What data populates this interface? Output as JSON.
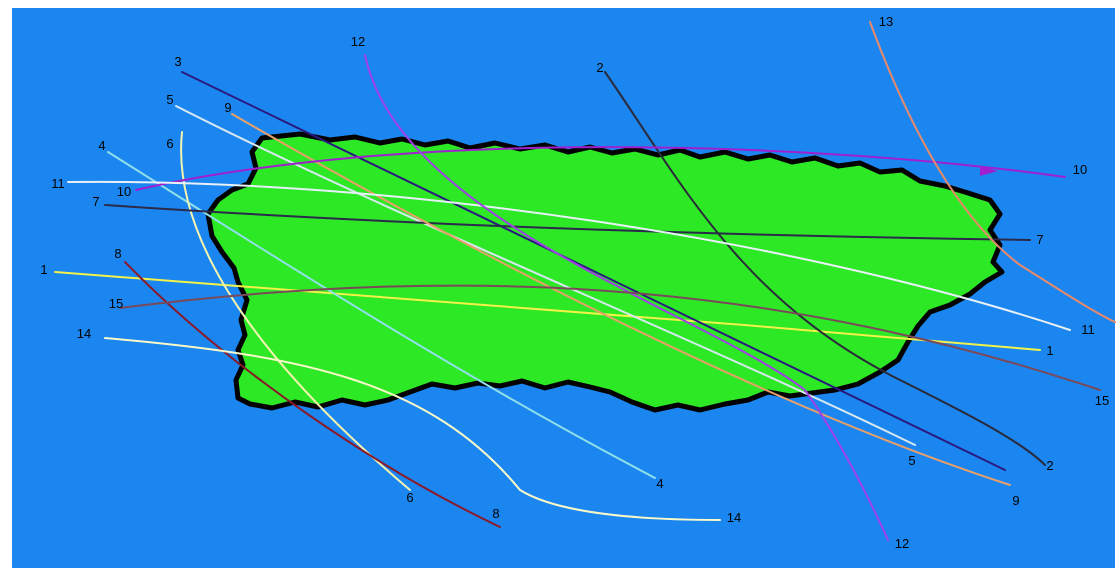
{
  "colors": {
    "sea": "#1b86f0",
    "island_fill": "#2de825",
    "coastline": "#000000",
    "label_text": "#000000"
  },
  "tracks": [
    {
      "id": "1",
      "color": "#f2f24a",
      "start_label": "1",
      "end_label": "1"
    },
    {
      "id": "2",
      "color": "#2a2a3a",
      "start_label": "2",
      "end_label": "2"
    },
    {
      "id": "3",
      "color": "#2a1a80",
      "start_label": "3",
      "end_label": ""
    },
    {
      "id": "4",
      "color": "#8fe0e8",
      "start_label": "4",
      "end_label": "4"
    },
    {
      "id": "5",
      "color": "#d8e8f0",
      "start_label": "5",
      "end_label": "5"
    },
    {
      "id": "6",
      "color": "#f4f4b0",
      "start_label": "6",
      "end_label": "6"
    },
    {
      "id": "7",
      "color": "#2a2a4a",
      "start_label": "7",
      "end_label": "7"
    },
    {
      "id": "8",
      "color": "#8a1a2a",
      "start_label": "8",
      "end_label": "8"
    },
    {
      "id": "9",
      "color": "#e8a06a",
      "start_label": "9",
      "end_label": "9"
    },
    {
      "id": "10",
      "color": "#a020d0",
      "start_label": "10",
      "end_label": "10"
    },
    {
      "id": "11",
      "color": "#e8f0f8",
      "start_label": "11",
      "end_label": "11"
    },
    {
      "id": "12",
      "color": "#a040e8",
      "start_label": "12",
      "end_label": "12"
    },
    {
      "id": "13",
      "color": "#e88a6a",
      "start_label": "13",
      "end_label": ""
    },
    {
      "id": "14",
      "color": "#f8f8c8",
      "start_label": "14",
      "end_label": "14"
    },
    {
      "id": "15",
      "color": "#7a4a5a",
      "start_label": "15",
      "end_label": "15"
    }
  ]
}
